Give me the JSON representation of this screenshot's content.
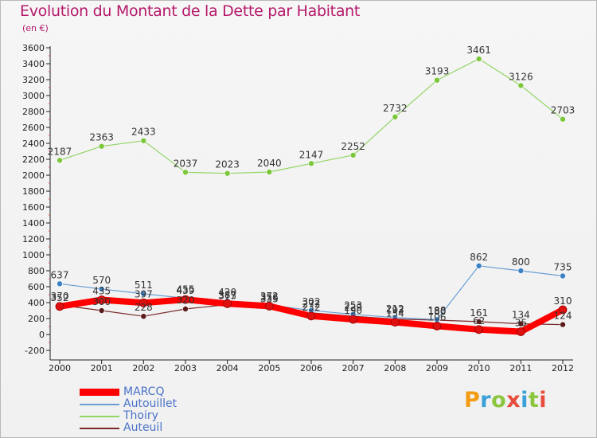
{
  "header": {
    "title": "Evolution du Montant de la Dette par Habitant",
    "unit": "(en €)"
  },
  "logo": {
    "text": "Proxiti",
    "colors": [
      "#f39c12",
      "#3aa0d8",
      "#8cc63f",
      "#e74c3c",
      "#3aa0d8",
      "#8cc63f",
      "#e74c3c"
    ]
  },
  "chart_data": {
    "type": "line",
    "title": "Evolution du Montant de la Dette par Habitant",
    "subtitle": "(en €)",
    "xlabel": "",
    "ylabel": "",
    "x": [
      "2000",
      "2001",
      "2002",
      "2003",
      "2004",
      "2005",
      "2006",
      "2007",
      "2008",
      "2009",
      "2010",
      "2011",
      "2012"
    ],
    "ylim": [
      -200,
      3600
    ],
    "y_ticks": [
      -200,
      0,
      200,
      400,
      600,
      800,
      1000,
      1200,
      1400,
      1600,
      1800,
      2000,
      2200,
      2400,
      2600,
      2800,
      3000,
      3200,
      3400,
      3600
    ],
    "grid": false,
    "legend_position": "bottom-left",
    "series": [
      {
        "name": "MARCQ",
        "color": "#ff0000",
        "values": [
          352,
          435,
          397,
          439,
          387,
          356,
          232,
          190,
          154,
          106,
          62,
          35,
          310
        ],
        "labels": [
          "352",
          "435",
          "397",
          "439",
          "387",
          "356",
          "232",
          "190",
          "154",
          "106",
          "62",
          "35",
          "310"
        ]
      },
      {
        "name": "Autouillet",
        "color": "#6a9fd4",
        "values": [
          637,
          570,
          511,
          455,
          420,
          372,
          302,
          253,
          212,
          188,
          862,
          800,
          735
        ],
        "labels": [
          "637",
          "570",
          "511",
          "455",
          "420",
          "372",
          "302",
          "253",
          "212",
          "188",
          "862",
          "800",
          "735"
        ]
      },
      {
        "name": "Thoiry",
        "color": "#93d565",
        "values": [
          2187,
          2363,
          2433,
          2037,
          2023,
          2040,
          2147,
          2252,
          2732,
          3193,
          3461,
          3126,
          2703
        ],
        "labels": [
          "2187",
          "2363",
          "2433",
          "2037",
          "2023",
          "2040",
          "2147",
          "2252",
          "2732",
          "3193",
          "3461",
          "3126",
          "2703"
        ]
      },
      {
        "name": "Auteuil",
        "color": "#7a2a2a",
        "values": [
          370,
          300,
          228,
          320,
          375,
          335,
          272,
          229,
          193,
          180,
          161,
          134,
          124
        ],
        "labels": [
          "370",
          "300",
          "228",
          "320",
          "375",
          "335",
          "272",
          "229",
          "193",
          "180",
          "161",
          "134",
          "124"
        ]
      }
    ]
  }
}
